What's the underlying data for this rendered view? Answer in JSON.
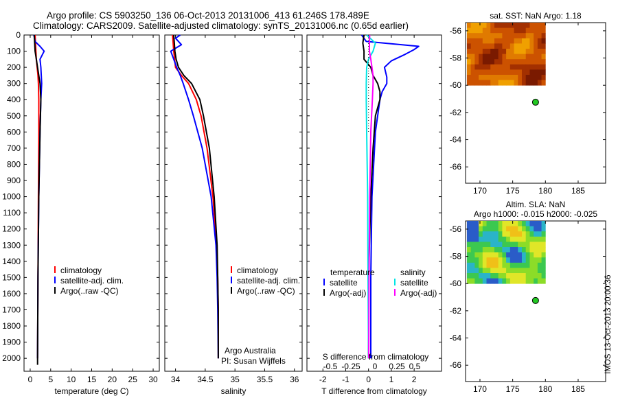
{
  "header": {
    "line1": "Argo profile: CS 5903250_136 06-Oct-2013 20131006_413 61.246S 178.489E",
    "line2": "Climatology: CARS2009. Satellite-adjusted climatology: synTS_20131006.nc (0.65d earlier)"
  },
  "footer": {
    "imos_stamp": "IMOS 13-Oct-2013 20:00:36"
  },
  "colors": {
    "climatology": "#ff0000",
    "satellite": "#0000ff",
    "argo": "#000000",
    "sal_satellite": "#00e5e5",
    "sal_argo": "#ff00ff"
  },
  "chart_data": [
    {
      "id": "temperature",
      "type": "line",
      "xlabel": "temperature (deg C)",
      "ylabel": "",
      "xlim": [
        -1.5,
        31.5
      ],
      "ylim": [
        2080,
        0
      ],
      "x_ticks": [
        0,
        5,
        10,
        15,
        20,
        25,
        30
      ],
      "y_ticks": [
        0,
        100,
        200,
        300,
        400,
        500,
        600,
        700,
        800,
        900,
        1000,
        1100,
        1200,
        1300,
        1400,
        1500,
        1600,
        1700,
        1800,
        1900,
        2000
      ],
      "legend": {
        "position": "center-left",
        "entries": [
          "climatology",
          "satellite-adj. clim.",
          "Argo(..raw -QC)"
        ]
      },
      "series": [
        {
          "name": "climatology",
          "color": "#ff0000",
          "depth": [
            0,
            50,
            100,
            150,
            200,
            250,
            300,
            400,
            600,
            1000,
            1500,
            2000
          ],
          "values": [
            1.2,
            1.3,
            1.4,
            1.5,
            1.7,
            1.9,
            2.0,
            2.1,
            2.1,
            2.0,
            1.9,
            1.8
          ]
        },
        {
          "name": "satellite-adj. clim.",
          "color": "#0000ff",
          "depth": [
            0,
            40,
            70,
            100,
            150,
            200,
            250,
            300,
            400,
            600,
            1000,
            1500,
            2000
          ],
          "values": [
            0.9,
            1.2,
            2.4,
            3.4,
            2.4,
            2.6,
            2.7,
            2.8,
            2.6,
            2.4,
            2.1,
            1.9,
            1.8
          ]
        },
        {
          "name": "Argo(..raw -QC)",
          "color": "#000000",
          "depth": [
            0,
            50,
            100,
            150,
            200,
            250,
            300,
            400,
            600,
            1000,
            1500,
            2000,
            2040
          ],
          "values": [
            1.0,
            1.1,
            1.2,
            1.5,
            1.8,
            2.1,
            2.4,
            2.6,
            2.4,
            2.1,
            1.9,
            1.8,
            1.8
          ]
        }
      ]
    },
    {
      "id": "salinity",
      "type": "line",
      "xlabel": "salinity",
      "ylabel": "",
      "xlim": [
        33.82,
        36.13
      ],
      "ylim": [
        2080,
        0
      ],
      "x_ticks": [
        34,
        34.5,
        35,
        35.5,
        36
      ],
      "x_tick_labels": [
        "34",
        "34.5",
        "35",
        "35.5",
        "36"
      ],
      "legend": {
        "position": "center-right",
        "entries": [
          "climatology",
          "satellite-adj. clim.",
          "Argo(..raw -QC)"
        ]
      },
      "annotation": [
        "Argo Australia",
        "PI: Susan Wijffels"
      ],
      "series": [
        {
          "name": "climatology",
          "color": "#ff0000",
          "depth": [
            0,
            100,
            200,
            250,
            300,
            400,
            500,
            700,
            1000,
            1300,
            1500,
            1700,
            2000
          ],
          "values": [
            33.95,
            33.97,
            34.0,
            34.1,
            34.22,
            34.35,
            34.43,
            34.53,
            34.63,
            34.69,
            34.71,
            34.72,
            34.72
          ]
        },
        {
          "name": "satellite-adj. clim.",
          "color": "#0000ff",
          "depth": [
            0,
            20,
            60,
            100,
            150,
            200,
            250,
            300,
            400,
            500,
            700,
            1000,
            1300,
            1500,
            1700,
            2000
          ],
          "values": [
            34.08,
            34.0,
            34.1,
            33.92,
            33.97,
            34.02,
            34.08,
            34.13,
            34.22,
            34.3,
            34.45,
            34.6,
            34.68,
            34.7,
            34.71,
            34.72
          ]
        },
        {
          "name": "Argo(..raw -QC)",
          "color": "#000000",
          "depth": [
            0,
            50,
            100,
            150,
            200,
            250,
            300,
            400,
            500,
            700,
            1000,
            1300,
            1500,
            1700,
            2000
          ],
          "values": [
            33.97,
            33.98,
            33.99,
            34.01,
            34.05,
            34.14,
            34.27,
            34.41,
            34.47,
            34.57,
            34.65,
            34.7,
            34.71,
            34.72,
            34.72
          ]
        }
      ]
    },
    {
      "id": "difference",
      "type": "line",
      "xlabel": "T difference from climatology",
      "xlabel_top": "S difference from climatology",
      "xlim": [
        -2.7,
        3.2
      ],
      "ylim": [
        2080,
        0
      ],
      "x_ticks": [
        -2,
        -1,
        0,
        1,
        2
      ],
      "s_ticks": [
        "-0.5",
        "-0.25",
        "0",
        "0.25",
        "0.5"
      ],
      "legend": {
        "position": "center",
        "temperature_title": "temperature",
        "salinity_title": "salinity",
        "entries": [
          "satellite",
          "Argo(-adj)",
          "satellite",
          "Argo(-adj)"
        ]
      },
      "series": [
        {
          "name": "T satellite",
          "color": "#0000ff",
          "depth": [
            0,
            40,
            70,
            90,
            120,
            160,
            200,
            260,
            300,
            350,
            400,
            600,
            1000,
            1500,
            2000
          ],
          "values": [
            -0.3,
            -0.1,
            2.2,
            2.0,
            1.6,
            1.0,
            0.7,
            0.8,
            0.8,
            0.6,
            0.5,
            0.3,
            0.15,
            0.1,
            0.1
          ]
        },
        {
          "name": "T Argo(-adj)",
          "color": "#000000",
          "depth": [
            0,
            50,
            100,
            150,
            200,
            250,
            300,
            350,
            400,
            500,
            700,
            1000,
            1500,
            2000
          ],
          "values": [
            -0.2,
            -0.25,
            -0.2,
            -0.2,
            0.1,
            0.2,
            0.4,
            0.5,
            0.5,
            0.3,
            0.2,
            0.1,
            0.0,
            0.0
          ]
        },
        {
          "name": "S satellite",
          "color": "#00e5e5",
          "depth": [
            0,
            50,
            100,
            150,
            200,
            300,
            400,
            600,
            800,
            1000,
            1500,
            2000
          ],
          "values": [
            -0.08,
            0.3,
            0.2,
            0.0,
            -0.08,
            -0.1,
            -0.1,
            -0.08,
            -0.06,
            -0.04,
            -0.02,
            0.0
          ]
        },
        {
          "name": "S Argo(-adj)",
          "color": "#ff00ff",
          "depth": [
            0,
            50,
            100,
            150,
            200,
            250,
            300,
            400,
            600,
            1000,
            1500,
            2000
          ],
          "values": [
            0.05,
            0.04,
            0.04,
            0.1,
            0.15,
            0.2,
            0.2,
            0.17,
            0.1,
            0.05,
            0.02,
            0.01
          ]
        }
      ]
    },
    {
      "id": "sst_map",
      "type": "heatmap",
      "title": "sat. SST: NaN Argo: 1.18",
      "xlim": [
        167.8,
        189.2
      ],
      "ylim": [
        -67.2,
        -55.4
      ],
      "x_ticks": [
        170,
        175,
        180,
        185
      ],
      "y_ticks": [
        -56,
        -58,
        -60,
        -62,
        -64,
        -66
      ],
      "data_extent": {
        "lon": [
          168.0,
          180.0
        ],
        "lat": [
          -60.0,
          -55.4
        ]
      },
      "palette": [
        "#7a1a00",
        "#a33000",
        "#cc5200",
        "#e07a00",
        "#f0a000"
      ],
      "argo_position": {
        "lon": 178.489,
        "lat": -61.246
      }
    },
    {
      "id": "sla_map",
      "type": "heatmap",
      "title": "Altim. SLA: NaN",
      "subtitle": "Argo h1000: -0.015 h2000: -0.025",
      "xlim": [
        167.8,
        189.2
      ],
      "ylim": [
        -67.2,
        -55.4
      ],
      "x_ticks": [
        170,
        175,
        180,
        185
      ],
      "y_ticks": [
        -56,
        -58,
        -60,
        -62,
        -64,
        -66
      ],
      "data_extent": {
        "lon": [
          168.0,
          180.0
        ],
        "lat": [
          -60.0,
          -55.4
        ]
      },
      "palette": [
        "#2a5cc8",
        "#2ab4c8",
        "#3cc850",
        "#8cdc28",
        "#e0e628",
        "#f0c018"
      ],
      "argo_position": {
        "lon": 178.489,
        "lat": -61.246
      }
    }
  ]
}
